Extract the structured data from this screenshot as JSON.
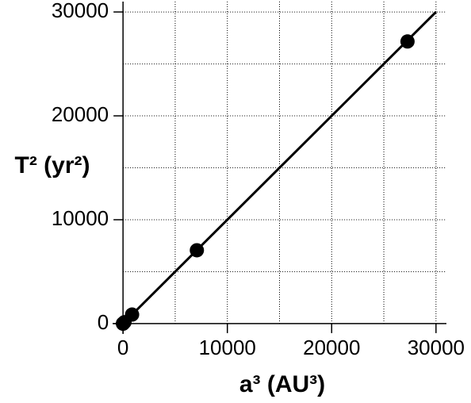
{
  "chart_data": {
    "type": "scatter",
    "xlabel": "a³ (AU³)",
    "ylabel": "T² (yr²)",
    "x": [
      0.058,
      0.378,
      1,
      3.54,
      140.6,
      868,
      7078,
      27270
    ],
    "values": [
      0.058,
      0.378,
      1,
      3.54,
      140.7,
      868,
      7059,
      27160
    ],
    "color": "#000000",
    "fit_line": {
      "x": [
        0,
        30000
      ],
      "y": [
        0,
        30000
      ]
    },
    "xlim": [
      -1000,
      31000
    ],
    "ylim": [
      -1000,
      31000
    ],
    "xticks": [
      0,
      10000,
      20000,
      30000
    ],
    "yticks": [
      0,
      10000,
      20000,
      30000
    ],
    "minor_grid": [
      5000,
      15000,
      25000
    ],
    "grid": true
  }
}
